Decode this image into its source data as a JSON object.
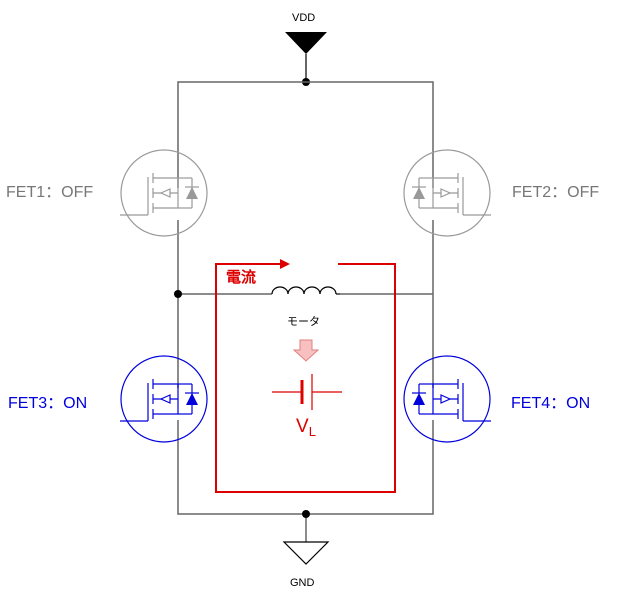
{
  "labels": {
    "vdd": "VDD",
    "gnd": "GND",
    "motor": "モータ",
    "current": "電流",
    "vl_main": "V",
    "vl_sub": "L"
  },
  "fets": {
    "fet1": "FET1：OFF",
    "fet2": "FET2：OFF",
    "fet3": "FET3：ON",
    "fet4": "FET4：ON"
  },
  "colors": {
    "wire": "#666666",
    "off": "#999999",
    "on": "#0000dd",
    "current": "#dd0000",
    "arrow_fill": "#f8c0c0",
    "arrow_stroke": "#e08080",
    "text": "#000000"
  }
}
